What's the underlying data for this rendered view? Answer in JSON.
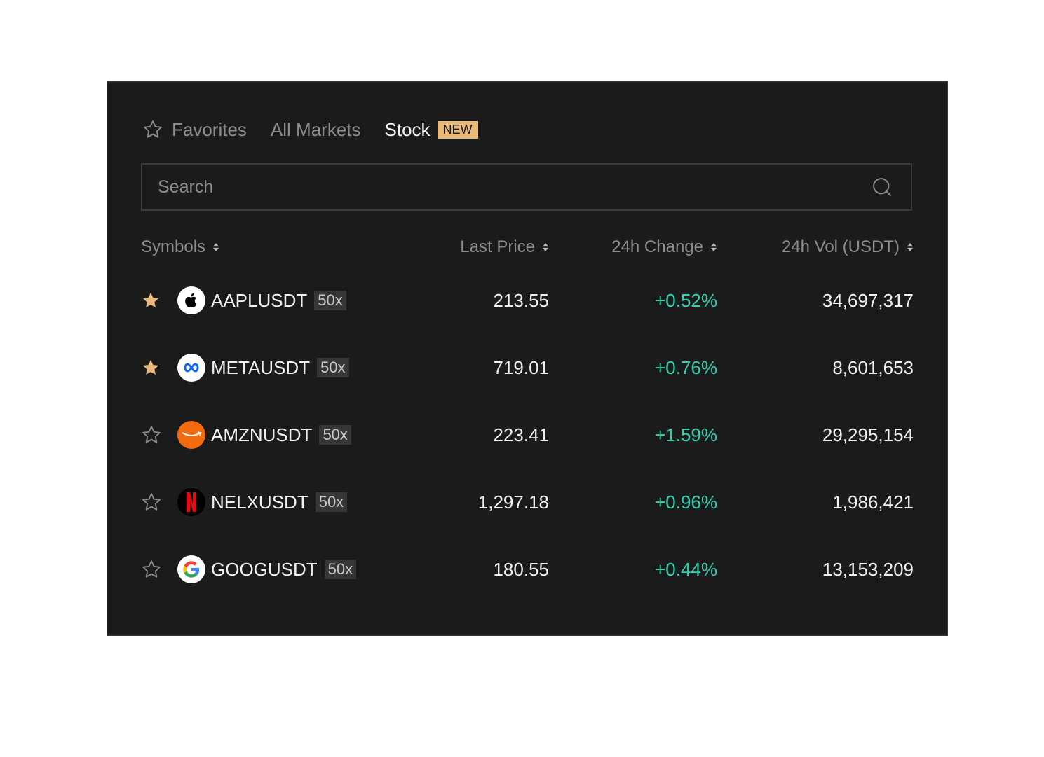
{
  "tabs": [
    {
      "label": "Favorites",
      "icon": "star-outline-icon"
    },
    {
      "label": "All Markets"
    },
    {
      "label": "Stock",
      "badge": "NEW",
      "active": true
    }
  ],
  "search": {
    "placeholder": "Search",
    "icon": "search-icon"
  },
  "columns": [
    "Symbols",
    "Last Price",
    "24h Change",
    "24h Vol (USDT)"
  ],
  "colors": {
    "accent": "#e8b97a",
    "positive": "#2fd0ae",
    "background": "#1b1b1b"
  },
  "rows": [
    {
      "symbol": "AAPLUSDT",
      "leverage": "50x",
      "price": "213.55",
      "change": "+0.52%",
      "volume": "34,697,317",
      "favorite": true,
      "logo": "apple-logo"
    },
    {
      "symbol": "METAUSDT",
      "leverage": "50x",
      "price": "719.01",
      "change": "+0.76%",
      "volume": "8,601,653",
      "favorite": true,
      "logo": "meta-logo"
    },
    {
      "symbol": "AMZNUSDT",
      "leverage": "50x",
      "price": "223.41",
      "change": "+1.59%",
      "volume": "29,295,154",
      "favorite": false,
      "logo": "amazon-logo"
    },
    {
      "symbol": "NELXUSDT",
      "leverage": "50x",
      "price": "1,297.18",
      "change": "+0.96%",
      "volume": "1,986,421",
      "favorite": false,
      "logo": "netflix-logo"
    },
    {
      "symbol": "GOOGUSDT",
      "leverage": "50x",
      "price": "180.55",
      "change": "+0.44%",
      "volume": "13,153,209",
      "favorite": false,
      "logo": "google-logo"
    }
  ]
}
